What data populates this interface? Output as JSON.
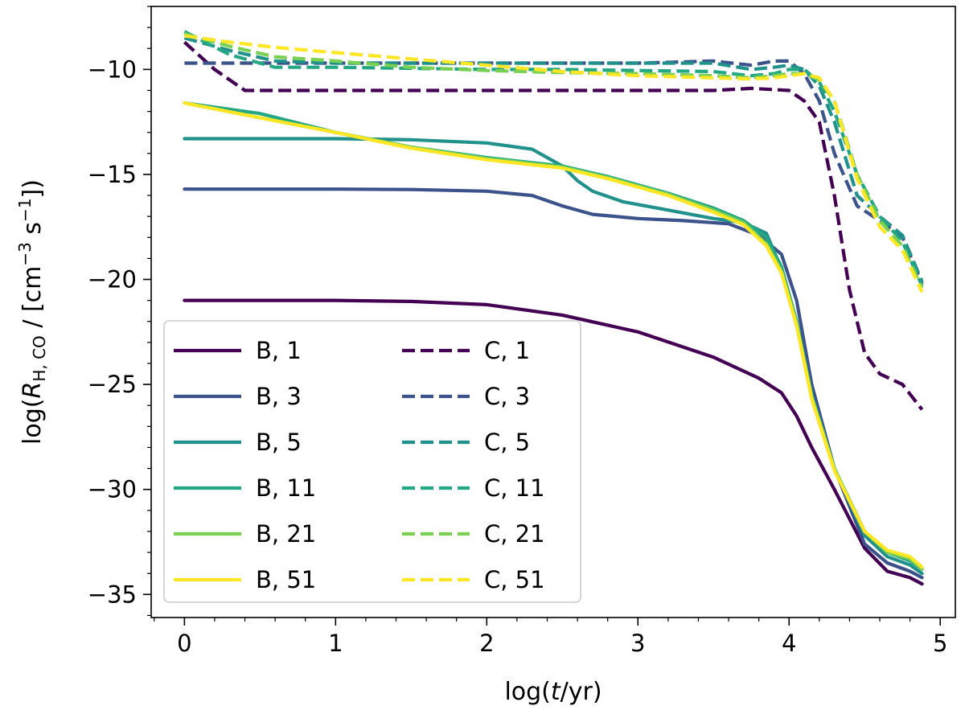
{
  "chart_data": {
    "type": "line",
    "title": "",
    "xlabel": "log(t/yr)",
    "ylabel": "log(R_H,CO / [cm^-3 s^-1])",
    "xlabel_parts": {
      "pre": "log(",
      "var": "t",
      "post": "/yr)"
    },
    "ylabel_parts": {
      "pre": "log(",
      "var": "R",
      "sub": "H, CO",
      "mid": " / [cm",
      "sup1": "−3",
      "mid2": " s",
      "sup2": "−1",
      "post": "])"
    },
    "xlim": [
      -0.22,
      5.1
    ],
    "ylim": [
      -36.1,
      -7.0
    ],
    "xticks": [
      0,
      1,
      2,
      3,
      4,
      5
    ],
    "xtick_labels": [
      "0",
      "1",
      "2",
      "3",
      "4",
      "5"
    ],
    "yticks": [
      -35,
      -30,
      -25,
      -20,
      -15,
      -10
    ],
    "ytick_labels": [
      "−35",
      "−30",
      "−25",
      "−20",
      "−15",
      "−10"
    ],
    "grid": false,
    "legend_position": "lower-left",
    "series": [
      {
        "name": "B, 1",
        "style": "solid",
        "color": "#440154",
        "x": [
          0,
          0.5,
          1,
          1.5,
          2,
          2.5,
          3,
          3.5,
          3.8,
          3.95,
          4.05,
          4.15,
          4.3,
          4.5,
          4.65,
          4.8,
          4.88
        ],
        "y": [
          -21.0,
          -21.0,
          -21.0,
          -21.05,
          -21.2,
          -21.7,
          -22.5,
          -23.7,
          -24.7,
          -25.4,
          -26.5,
          -28.0,
          -30.0,
          -32.8,
          -33.9,
          -34.2,
          -34.5
        ]
      },
      {
        "name": "B, 3",
        "style": "solid",
        "color": "#3b528b",
        "x": [
          0,
          0.5,
          1,
          1.5,
          2,
          2.3,
          2.5,
          2.7,
          3,
          3.3,
          3.6,
          3.8,
          3.95,
          4.05,
          4.15,
          4.3,
          4.5,
          4.65,
          4.8,
          4.88
        ],
        "y": [
          -15.7,
          -15.7,
          -15.7,
          -15.72,
          -15.8,
          -16.0,
          -16.5,
          -16.9,
          -17.1,
          -17.2,
          -17.35,
          -17.9,
          -18.8,
          -21.0,
          -25.0,
          -29.0,
          -32.6,
          -33.5,
          -33.9,
          -34.2
        ]
      },
      {
        "name": "B, 5",
        "style": "solid",
        "color": "#21918c",
        "x": [
          0,
          0.5,
          1,
          1.5,
          2,
          2.3,
          2.5,
          2.6,
          2.7,
          2.9,
          3.2,
          3.5,
          3.7,
          3.85,
          3.95,
          4.05,
          4.15,
          4.3,
          4.5,
          4.65,
          4.8,
          4.88
        ],
        "y": [
          -13.3,
          -13.3,
          -13.3,
          -13.35,
          -13.5,
          -13.8,
          -14.6,
          -15.3,
          -15.8,
          -16.3,
          -16.7,
          -17.1,
          -17.3,
          -17.8,
          -19.5,
          -22.0,
          -25.5,
          -29.0,
          -32.2,
          -33.2,
          -33.6,
          -34.0
        ]
      },
      {
        "name": "B, 11",
        "style": "solid",
        "color": "#24a884",
        "x": [
          0,
          0.5,
          1,
          1.5,
          2,
          2.5,
          2.8,
          3.2,
          3.5,
          3.7,
          3.85,
          3.95,
          4.05,
          4.15,
          4.3,
          4.5,
          4.65,
          4.8,
          4.88
        ],
        "y": [
          -11.6,
          -12.1,
          -13.0,
          -13.7,
          -14.2,
          -14.6,
          -15.1,
          -15.9,
          -16.6,
          -17.2,
          -18.0,
          -19.4,
          -22.0,
          -25.5,
          -29.0,
          -32.0,
          -33.0,
          -33.4,
          -33.8
        ]
      },
      {
        "name": "B, 21",
        "style": "solid",
        "color": "#7ad151",
        "x": [
          0,
          0.5,
          1,
          1.5,
          2,
          2.5,
          2.8,
          3.2,
          3.5,
          3.7,
          3.85,
          3.95,
          4.05,
          4.15,
          4.3,
          4.5,
          4.65,
          4.8,
          4.88
        ],
        "y": [
          -11.6,
          -12.3,
          -13.0,
          -13.7,
          -14.25,
          -14.65,
          -15.15,
          -15.95,
          -16.7,
          -17.3,
          -18.3,
          -19.6,
          -22.1,
          -25.6,
          -29.0,
          -32.0,
          -33.0,
          -33.3,
          -33.8
        ]
      },
      {
        "name": "B, 51",
        "style": "solid",
        "color": "#fde725",
        "x": [
          0,
          0.5,
          1,
          1.5,
          2,
          2.5,
          2.8,
          3.2,
          3.5,
          3.7,
          3.85,
          3.95,
          4.05,
          4.15,
          4.3,
          4.5,
          4.65,
          4.8,
          4.88
        ],
        "y": [
          -11.6,
          -12.3,
          -13.0,
          -13.75,
          -14.3,
          -14.7,
          -15.2,
          -16.0,
          -16.8,
          -17.4,
          -18.4,
          -19.7,
          -22.2,
          -25.7,
          -29.1,
          -32.0,
          -32.9,
          -33.2,
          -33.7
        ]
      },
      {
        "name": "C, 1",
        "style": "dashed",
        "color": "#440154",
        "x": [
          0,
          0.2,
          0.4,
          0.6,
          1,
          1.5,
          2,
          2.5,
          3,
          3.5,
          3.75,
          4.0,
          4.1,
          4.2,
          4.3,
          4.4,
          4.5,
          4.6,
          4.75,
          4.88
        ],
        "y": [
          -8.7,
          -10.0,
          -11.0,
          -11.0,
          -11.0,
          -11.0,
          -11.0,
          -11.0,
          -11.0,
          -11.0,
          -10.9,
          -11.0,
          -11.5,
          -12.5,
          -16.0,
          -20.5,
          -23.5,
          -24.5,
          -25.0,
          -26.2
        ]
      },
      {
        "name": "C, 3",
        "style": "dashed",
        "color": "#3b528b",
        "x": [
          0,
          0.5,
          1,
          1.5,
          2,
          2.5,
          3,
          3.5,
          3.75,
          3.9,
          4.0,
          4.1,
          4.2,
          4.3,
          4.45,
          4.6,
          4.75,
          4.88
        ],
        "y": [
          -9.7,
          -9.7,
          -9.7,
          -9.7,
          -9.7,
          -9.7,
          -9.7,
          -9.6,
          -9.8,
          -9.6,
          -9.6,
          -10.2,
          -11.5,
          -14.0,
          -16.5,
          -17.2,
          -18.0,
          -20.2
        ]
      },
      {
        "name": "C, 5",
        "style": "dashed",
        "color": "#21918c",
        "x": [
          0,
          0.3,
          0.6,
          1,
          1.5,
          2,
          2.5,
          3,
          3.5,
          3.75,
          3.9,
          4.0,
          4.1,
          4.2,
          4.3,
          4.45,
          4.6,
          4.75,
          4.88
        ],
        "y": [
          -8.5,
          -9.1,
          -9.6,
          -9.7,
          -9.7,
          -9.7,
          -9.7,
          -9.7,
          -9.7,
          -10.0,
          -9.9,
          -9.8,
          -10.0,
          -10.8,
          -12.5,
          -16.0,
          -17.0,
          -17.9,
          -20.1
        ]
      },
      {
        "name": "C, 11",
        "style": "dashed",
        "color": "#24a884",
        "x": [
          0,
          0.3,
          0.6,
          1,
          1.5,
          2,
          2.5,
          3,
          3.5,
          3.75,
          3.9,
          4.0,
          4.1,
          4.2,
          4.3,
          4.45,
          4.6,
          4.75,
          4.88
        ],
        "y": [
          -8.2,
          -9.3,
          -9.9,
          -9.9,
          -9.95,
          -10.0,
          -10.0,
          -10.05,
          -10.1,
          -10.3,
          -10.2,
          -10.0,
          -10.0,
          -10.6,
          -12.0,
          -15.0,
          -17.0,
          -18.2,
          -20.3
        ]
      },
      {
        "name": "C, 21",
        "style": "dashed",
        "color": "#7ad151",
        "x": [
          0,
          0.3,
          0.6,
          1,
          1.5,
          2,
          2.5,
          3,
          3.5,
          3.75,
          3.9,
          4.0,
          4.1,
          4.2,
          4.3,
          4.45,
          4.6,
          4.75,
          4.88
        ],
        "y": [
          -8.3,
          -8.9,
          -9.4,
          -9.6,
          -9.9,
          -10.05,
          -10.15,
          -10.2,
          -10.3,
          -10.4,
          -10.3,
          -10.2,
          -10.2,
          -10.5,
          -11.5,
          -15.0,
          -17.2,
          -18.4,
          -20.4
        ]
      },
      {
        "name": "C, 51",
        "style": "dashed",
        "color": "#fde725",
        "x": [
          0,
          0.3,
          0.6,
          1,
          1.5,
          2,
          2.5,
          3,
          3.5,
          3.75,
          3.9,
          4.0,
          4.1,
          4.2,
          4.3,
          4.45,
          4.6,
          4.75,
          4.88
        ],
        "y": [
          -8.4,
          -8.7,
          -8.95,
          -9.2,
          -9.5,
          -9.8,
          -10.1,
          -10.3,
          -10.4,
          -10.45,
          -10.4,
          -10.3,
          -10.2,
          -10.4,
          -11.5,
          -15.2,
          -17.5,
          -18.6,
          -20.6
        ]
      }
    ]
  }
}
